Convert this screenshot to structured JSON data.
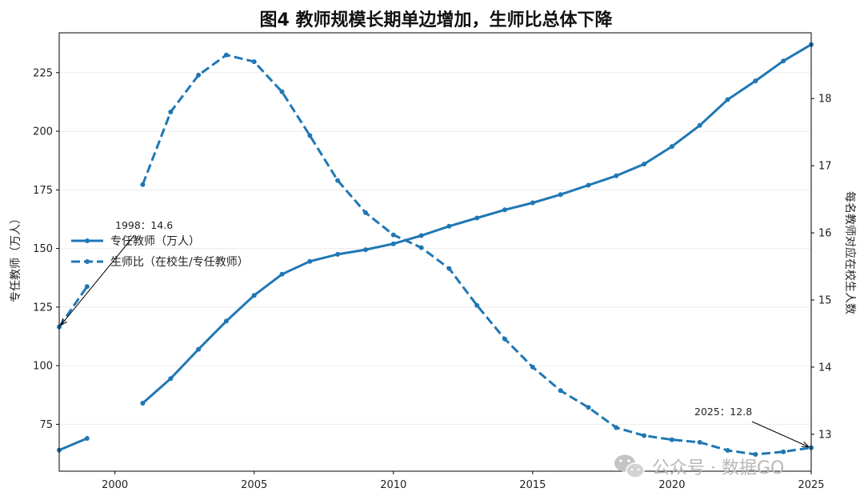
{
  "chart_data": {
    "type": "line",
    "title": "图4  教师规模长期单边增加，生师比总体下降",
    "ylabel_left": "专任教师（万人）",
    "ylabel_right": "每名教师对应在校生人数",
    "xlim": [
      1998,
      2025
    ],
    "ylim_left": [
      55,
      242
    ],
    "ylim_right": [
      12.45,
      18.98
    ],
    "x_ticks": [
      "2000",
      "2005",
      "2010",
      "2015",
      "2020",
      "2025"
    ],
    "y_ticks_left": [
      "75",
      "100",
      "125",
      "150",
      "175",
      "200",
      "225"
    ],
    "y_ticks_right": [
      "13",
      "14",
      "15",
      "16",
      "17",
      "18"
    ],
    "grid": true,
    "legend_position": "center-left",
    "series": [
      {
        "name": "专任教师（万人）",
        "axis": "left",
        "style": "solid",
        "color": "#1f77b4",
        "points": [
          [
            1998,
            64
          ],
          [
            1999,
            69
          ],
          [
            2001,
            84
          ],
          [
            2002,
            94.5
          ],
          [
            2003,
            107
          ],
          [
            2004,
            119
          ],
          [
            2005,
            130
          ],
          [
            2006,
            139
          ],
          [
            2007,
            144.5
          ],
          [
            2008,
            147.5
          ],
          [
            2009,
            149.5
          ],
          [
            2010,
            152
          ],
          [
            2011,
            155.5
          ],
          [
            2012,
            159.5
          ],
          [
            2013,
            163
          ],
          [
            2014,
            166.5
          ],
          [
            2015,
            169.5
          ],
          [
            2016,
            173
          ],
          [
            2017,
            177
          ],
          [
            2018,
            181
          ],
          [
            2019,
            186
          ],
          [
            2020,
            193.5
          ],
          [
            2021,
            202.5
          ],
          [
            2022,
            213.5
          ],
          [
            2023,
            221.5
          ],
          [
            2024,
            230
          ],
          [
            2025,
            237
          ]
        ]
      },
      {
        "name": "生师比（在校生/专任教师）",
        "axis": "right",
        "style": "dashed",
        "color": "#1f77b4",
        "points": [
          [
            1998,
            14.6
          ],
          [
            1999,
            15.2
          ],
          [
            2001,
            16.72
          ],
          [
            2002,
            17.8
          ],
          [
            2003,
            18.35
          ],
          [
            2004,
            18.65
          ],
          [
            2005,
            18.55
          ],
          [
            2006,
            18.1
          ],
          [
            2007,
            17.45
          ],
          [
            2008,
            16.78
          ],
          [
            2009,
            16.3
          ],
          [
            2010,
            15.97
          ],
          [
            2011,
            15.78
          ],
          [
            2012,
            15.47
          ],
          [
            2013,
            14.92
          ],
          [
            2014,
            14.42
          ],
          [
            2015,
            14.0
          ],
          [
            2016,
            13.65
          ],
          [
            2017,
            13.4
          ],
          [
            2018,
            13.1
          ],
          [
            2019,
            12.98
          ],
          [
            2020,
            12.92
          ],
          [
            2021,
            12.88
          ],
          [
            2022,
            12.76
          ],
          [
            2023,
            12.7
          ],
          [
            2024,
            12.74
          ],
          [
            2025,
            12.8
          ]
        ]
      }
    ],
    "annotations": [
      {
        "text": "1998：14.6",
        "x": 1998,
        "y": 14.6,
        "axis": "right"
      },
      {
        "text": "2025：12.8",
        "x": 2025,
        "y": 12.8,
        "axis": "right"
      }
    ]
  },
  "watermark": {
    "text": "公众号 · 数据GO",
    "icon": "wechat-icon"
  }
}
